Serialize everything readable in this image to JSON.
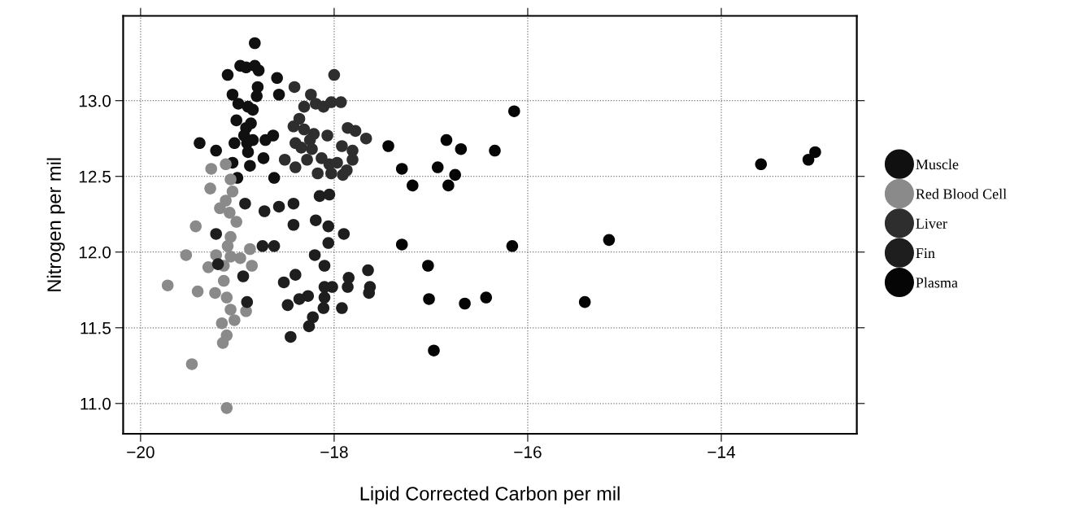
{
  "chart_data": {
    "type": "scatter",
    "xlabel": "Lipid Corrected Carbon per mil",
    "ylabel": "Nitrogen per mil",
    "xlim": [
      -20.18,
      -12.6
    ],
    "ylim": [
      10.8,
      13.56
    ],
    "xticks": [
      {
        "value": -20,
        "label": "−20"
      },
      {
        "value": -18,
        "label": "−18"
      },
      {
        "value": -16,
        "label": "−16"
      },
      {
        "value": -14,
        "label": "−14"
      }
    ],
    "yticks": [
      {
        "value": 11.0,
        "label": "11.0"
      },
      {
        "value": 11.5,
        "label": "11.5"
      },
      {
        "value": 12.0,
        "label": "12.0"
      },
      {
        "value": 12.5,
        "label": "12.5"
      },
      {
        "value": 13.0,
        "label": "13.0"
      }
    ],
    "grid": true,
    "legend": "right",
    "marker": "circle",
    "series": [
      {
        "name": "Muscle",
        "color": "#101010",
        "x": [
          -18.82,
          -18.97,
          -18.91,
          -18.82,
          -18.78,
          -19.1,
          -18.59,
          -19.05,
          -18.79,
          -18.8,
          -18.57,
          -18.99,
          -18.89,
          -18.84,
          -19.01,
          -18.86,
          -18.91,
          -18.93,
          -18.84,
          -18.9,
          -18.89,
          -18.73,
          -18.87,
          -19.39,
          -19.22,
          -19.03,
          -18.63,
          -18.71,
          -19.05,
          -19.0,
          -18.62
        ],
        "values": [
          13.38,
          13.23,
          13.22,
          13.23,
          13.2,
          13.17,
          13.15,
          13.04,
          13.09,
          13.03,
          13.04,
          12.98,
          12.96,
          12.94,
          12.87,
          12.85,
          12.82,
          12.77,
          12.74,
          12.72,
          12.66,
          12.62,
          12.57,
          12.72,
          12.67,
          12.72,
          12.77,
          12.74,
          12.59,
          12.49,
          12.49
        ]
      },
      {
        "name": "Red Blood Cell",
        "color": "#8a8a8a",
        "x": [
          -19.27,
          -19.12,
          -19.07,
          -19.28,
          -19.05,
          -19.12,
          -19.18,
          -19.08,
          -19.01,
          -19.43,
          -19.07,
          -19.1,
          -19.53,
          -19.22,
          -19.07,
          -18.97,
          -18.87,
          -19.14,
          -19.3,
          -18.85,
          -19.14,
          -19.72,
          -19.41,
          -19.23,
          -19.11,
          -19.07,
          -18.91,
          -19.16,
          -19.03,
          -19.11,
          -19.15,
          -19.47,
          -19.11
        ],
        "values": [
          12.55,
          12.58,
          12.48,
          12.42,
          12.4,
          12.34,
          12.29,
          12.26,
          12.2,
          12.17,
          12.1,
          12.04,
          11.98,
          11.98,
          11.97,
          11.96,
          12.02,
          11.91,
          11.9,
          11.91,
          11.81,
          11.78,
          11.74,
          11.73,
          11.7,
          11.62,
          11.61,
          11.53,
          11.55,
          11.45,
          11.4,
          11.26,
          10.97
        ]
      },
      {
        "name": "Liver",
        "color": "#2e2e2e",
        "x": [
          -18.41,
          -18.24,
          -18.19,
          -18.11,
          -18.03,
          -17.93,
          -18.31,
          -18.0,
          -18.36,
          -18.42,
          -18.31,
          -18.4,
          -18.34,
          -18.25,
          -18.21,
          -18.23,
          -18.13,
          -18.28,
          -18.4,
          -18.51,
          -18.07,
          -18.17,
          -18.03,
          -18.05,
          -17.97,
          -17.92,
          -17.81,
          -17.86,
          -17.78,
          -17.81,
          -17.87,
          -17.91,
          -17.67
        ],
        "values": [
          13.09,
          13.04,
          12.98,
          12.96,
          12.99,
          12.99,
          12.96,
          13.17,
          12.88,
          12.83,
          12.81,
          12.72,
          12.69,
          12.74,
          12.78,
          12.68,
          12.62,
          12.61,
          12.56,
          12.61,
          12.77,
          12.52,
          12.52,
          12.58,
          12.59,
          12.7,
          12.67,
          12.82,
          12.8,
          12.61,
          12.54,
          12.51,
          12.75
        ]
      },
      {
        "name": "Fin",
        "color": "#1e1e1e",
        "x": [
          -18.92,
          -18.72,
          -18.57,
          -18.42,
          -18.15,
          -18.05,
          -18.42,
          -18.19,
          -18.06,
          -17.9,
          -19.22,
          -18.74,
          -18.62,
          -18.2,
          -18.1,
          -18.06,
          -18.4,
          -18.52,
          -18.94,
          -19.2,
          -18.1,
          -18.02,
          -17.85,
          -17.86,
          -17.65,
          -17.63,
          -17.64,
          -18.27,
          -18.36,
          -18.1,
          -18.48,
          -18.11,
          -17.92,
          -18.9,
          -18.22,
          -18.26,
          -18.45
        ],
        "values": [
          12.32,
          12.27,
          12.3,
          12.32,
          12.37,
          12.38,
          12.18,
          12.21,
          12.17,
          12.12,
          12.12,
          12.04,
          12.04,
          11.98,
          11.91,
          12.06,
          11.85,
          11.8,
          11.84,
          11.92,
          11.77,
          11.77,
          11.83,
          11.77,
          11.88,
          11.77,
          11.73,
          11.71,
          11.69,
          11.7,
          11.65,
          11.63,
          11.63,
          11.67,
          11.57,
          11.51,
          11.44
        ]
      },
      {
        "name": "Plasma",
        "color": "#050505",
        "x": [
          -17.44,
          -16.84,
          -16.69,
          -17.3,
          -16.93,
          -16.75,
          -17.19,
          -16.82,
          -16.14,
          -16.34,
          -13.59,
          -13.1,
          -13.03,
          -16.16,
          -15.16,
          -17.3,
          -17.03,
          -17.02,
          -16.65,
          -16.97,
          -16.43,
          -15.41
        ],
        "values": [
          12.7,
          12.74,
          12.68,
          12.55,
          12.56,
          12.51,
          12.44,
          12.44,
          12.93,
          12.67,
          12.58,
          12.61,
          12.66,
          12.04,
          12.08,
          12.05,
          11.91,
          11.69,
          11.66,
          11.35,
          11.7,
          11.67
        ]
      }
    ]
  }
}
